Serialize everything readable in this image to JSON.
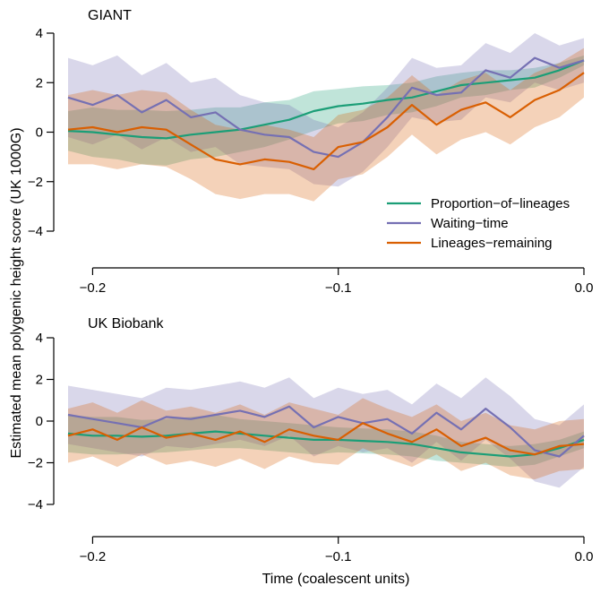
{
  "ylabel": "Estimated mean polygenic height score (UK 1000G)",
  "xlabel": "Time (coalescent units)",
  "colors": {
    "proportion": "#1b9e77",
    "waiting": "#7570b3",
    "lineages": "#d95f02"
  },
  "chart_data": [
    {
      "type": "line",
      "title": "GIANT",
      "xlim": [
        -0.21,
        0.0
      ],
      "ylim": [
        -4,
        4
      ],
      "x_ticks": [
        "-0.2",
        "-0.1",
        "0.0"
      ],
      "y_ticks": [
        "4",
        "2",
        "0",
        "-2",
        "-4"
      ],
      "legend": {
        "position": "bottom-right",
        "entries": [
          "Proportion−of−lineages",
          "Waiting−time",
          "Lineages−remaining"
        ]
      },
      "series": [
        {
          "name": "Proportion−of−lineages",
          "color": "#1b9e77",
          "x": [
            -0.21,
            -0.2,
            -0.19,
            -0.18,
            -0.17,
            -0.16,
            -0.15,
            -0.14,
            -0.13,
            -0.12,
            -0.11,
            -0.1,
            -0.09,
            -0.08,
            -0.07,
            -0.06,
            -0.05,
            -0.04,
            -0.03,
            -0.02,
            -0.01,
            0.0
          ],
          "y": [
            0.05,
            0.0,
            -0.1,
            -0.2,
            -0.25,
            -0.1,
            0.0,
            0.1,
            0.3,
            0.5,
            0.85,
            1.05,
            1.15,
            1.3,
            1.4,
            1.65,
            1.9,
            2.0,
            2.1,
            2.2,
            2.5,
            2.9
          ],
          "band": [
            0.8,
            1.0,
            1.0,
            1.1,
            1.1,
            1.0,
            1.0,
            0.9,
            0.9,
            0.8,
            0.8,
            0.7,
            0.7,
            0.6,
            0.6,
            0.6,
            0.5,
            0.5,
            0.4,
            0.4,
            0.3,
            0.2
          ]
        },
        {
          "name": "Waiting−time",
          "color": "#7570b3",
          "x": [
            -0.21,
            -0.2,
            -0.19,
            -0.18,
            -0.17,
            -0.16,
            -0.15,
            -0.14,
            -0.13,
            -0.12,
            -0.11,
            -0.1,
            -0.09,
            -0.08,
            -0.07,
            -0.06,
            -0.05,
            -0.04,
            -0.03,
            -0.02,
            -0.01,
            0.0
          ],
          "y": [
            1.4,
            1.1,
            1.5,
            0.8,
            1.3,
            0.6,
            0.8,
            0.1,
            -0.1,
            -0.2,
            -0.8,
            -1.0,
            -0.4,
            0.6,
            1.8,
            1.5,
            1.6,
            2.5,
            2.2,
            3.0,
            2.6,
            2.9
          ],
          "band": [
            1.6,
            1.6,
            1.6,
            1.5,
            1.5,
            1.4,
            1.4,
            1.4,
            1.3,
            1.3,
            1.3,
            1.2,
            1.2,
            1.2,
            1.2,
            1.1,
            1.1,
            1.1,
            1.0,
            1.0,
            0.9,
            0.9
          ]
        },
        {
          "name": "Lineages−remaining",
          "color": "#d95f02",
          "x": [
            -0.21,
            -0.2,
            -0.19,
            -0.18,
            -0.17,
            -0.16,
            -0.15,
            -0.14,
            -0.13,
            -0.12,
            -0.11,
            -0.1,
            -0.09,
            -0.08,
            -0.07,
            -0.06,
            -0.05,
            -0.04,
            -0.03,
            -0.02,
            -0.01,
            0.0
          ],
          "y": [
            0.1,
            0.2,
            0.0,
            0.2,
            0.1,
            -0.5,
            -1.1,
            -1.3,
            -1.1,
            -1.2,
            -1.5,
            -0.6,
            -0.4,
            0.2,
            1.1,
            0.3,
            0.9,
            1.2,
            0.6,
            1.3,
            1.7,
            2.4
          ],
          "band": [
            1.4,
            1.5,
            1.5,
            1.5,
            1.5,
            1.4,
            1.4,
            1.4,
            1.4,
            1.3,
            1.3,
            1.3,
            1.3,
            1.2,
            1.2,
            1.2,
            1.2,
            1.2,
            1.1,
            1.1,
            1.1,
            1.0
          ]
        }
      ]
    },
    {
      "type": "line",
      "title": "UK Biobank",
      "xlim": [
        -0.21,
        0.0
      ],
      "ylim": [
        -4,
        4
      ],
      "x_ticks": [
        "-0.2",
        "-0.1",
        "0.0"
      ],
      "y_ticks": [
        "4",
        "2",
        "0",
        "-2",
        "-4"
      ],
      "series": [
        {
          "name": "Proportion−of−lineages",
          "color": "#1b9e77",
          "x": [
            -0.21,
            -0.2,
            -0.19,
            -0.18,
            -0.17,
            -0.16,
            -0.15,
            -0.14,
            -0.13,
            -0.12,
            -0.11,
            -0.1,
            -0.09,
            -0.08,
            -0.07,
            -0.06,
            -0.05,
            -0.04,
            -0.03,
            -0.02,
            -0.01,
            0.0
          ],
          "y": [
            -0.6,
            -0.7,
            -0.7,
            -0.75,
            -0.7,
            -0.6,
            -0.5,
            -0.6,
            -0.7,
            -0.8,
            -0.9,
            -0.9,
            -0.95,
            -1.0,
            -1.1,
            -1.3,
            -1.5,
            -1.6,
            -1.7,
            -1.6,
            -1.3,
            -0.9
          ],
          "band": [
            0.9,
            0.9,
            0.9,
            0.8,
            0.8,
            0.8,
            0.8,
            0.7,
            0.7,
            0.7,
            0.7,
            0.6,
            0.6,
            0.6,
            0.6,
            0.6,
            0.5,
            0.5,
            0.5,
            0.5,
            0.4,
            0.4
          ]
        },
        {
          "name": "Waiting−time",
          "color": "#7570b3",
          "x": [
            -0.21,
            -0.2,
            -0.19,
            -0.18,
            -0.17,
            -0.16,
            -0.15,
            -0.14,
            -0.13,
            -0.12,
            -0.11,
            -0.1,
            -0.09,
            -0.08,
            -0.07,
            -0.06,
            -0.05,
            -0.04,
            -0.03,
            -0.02,
            -0.01,
            0.0
          ],
          "y": [
            0.3,
            0.1,
            -0.1,
            -0.3,
            0.2,
            0.1,
            0.3,
            0.5,
            0.2,
            0.7,
            -0.3,
            0.2,
            -0.1,
            0.1,
            -0.6,
            0.4,
            -0.4,
            0.6,
            -0.3,
            -1.4,
            -1.7,
            -0.7
          ],
          "band": [
            1.4,
            1.4,
            1.4,
            1.4,
            1.4,
            1.4,
            1.4,
            1.4,
            1.4,
            1.4,
            1.4,
            1.4,
            1.4,
            1.4,
            1.4,
            1.4,
            1.5,
            1.5,
            1.5,
            1.5,
            1.5,
            1.5
          ]
        },
        {
          "name": "Lineages−remaining",
          "color": "#d95f02",
          "x": [
            -0.21,
            -0.2,
            -0.19,
            -0.18,
            -0.17,
            -0.16,
            -0.15,
            -0.14,
            -0.13,
            -0.12,
            -0.11,
            -0.1,
            -0.09,
            -0.08,
            -0.07,
            -0.06,
            -0.05,
            -0.04,
            -0.03,
            -0.02,
            -0.01,
            0.0
          ],
          "y": [
            -0.7,
            -0.4,
            -0.9,
            -0.3,
            -0.8,
            -0.6,
            -0.9,
            -0.5,
            -1.0,
            -0.4,
            -0.7,
            -0.9,
            -0.1,
            -0.6,
            -1.0,
            -0.4,
            -1.2,
            -0.8,
            -1.4,
            -1.6,
            -1.2,
            -1.1
          ],
          "band": [
            1.3,
            1.3,
            1.3,
            1.3,
            1.3,
            1.3,
            1.3,
            1.3,
            1.3,
            1.3,
            1.3,
            1.2,
            1.2,
            1.2,
            1.2,
            1.2,
            1.2,
            1.2,
            1.2,
            1.2,
            1.2,
            1.2
          ]
        }
      ]
    }
  ]
}
